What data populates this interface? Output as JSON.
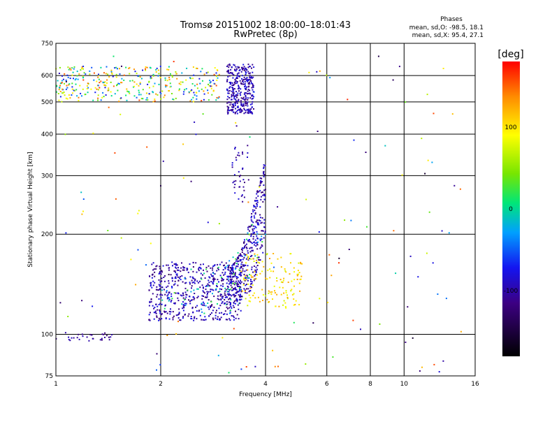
{
  "chart_data": {
    "type": "scatter",
    "title": "Tromsø 20151002 18:00:00–18:01:43",
    "subtitle": "RwPretec (8p)",
    "xlabel": "Frequency [MHz]",
    "ylabel": "Stationary phase Virtual Height [km]",
    "x_scale": "log",
    "y_scale": "log",
    "xlim": [
      1,
      16
    ],
    "ylim": [
      75,
      750
    ],
    "x_ticks": [
      1,
      2,
      4,
      6,
      8,
      10,
      16
    ],
    "y_ticks": [
      75,
      100,
      200,
      300,
      400,
      500,
      600,
      750
    ],
    "grid": true,
    "legend": {
      "title": "Phases",
      "lines": [
        "mean, sd,O: -98.5, 18.1",
        "mean, sd,X:  95.4, 27.1"
      ]
    },
    "colorbar": {
      "label": "[deg]",
      "range": [
        -180,
        180
      ],
      "ticks": [
        -100,
        0,
        100
      ]
    },
    "clusters": [
      {
        "desc": "E-layer trace",
        "x": [
          1.0,
          1.45
        ],
        "y": [
          95,
          102
        ],
        "phase": [
          -120,
          -90
        ],
        "n": 30
      },
      {
        "desc": "F-region low band",
        "x": [
          1.85,
          3.4
        ],
        "y": [
          110,
          165
        ],
        "phase": [
          -125,
          -70
        ],
        "n": 560
      },
      {
        "desc": "F-region low band mixed",
        "x": [
          2.0,
          3.4
        ],
        "y": [
          115,
          160
        ],
        "phase": [
          -40,
          30
        ],
        "n": 50
      },
      {
        "desc": "F-region cusp",
        "x": [
          3.1,
          4.0
        ],
        "y": [
          120,
          310
        ],
        "phase": [
          -125,
          -70
        ],
        "n": 380
      },
      {
        "desc": "F-region cusp mixed",
        "x": [
          3.1,
          4.0
        ],
        "y": [
          130,
          260
        ],
        "phase": [
          -40,
          40
        ],
        "n": 30
      },
      {
        "desc": "F-region vertical tail",
        "x": [
          3.2,
          3.6
        ],
        "y": [
          250,
          370
        ],
        "phase": [
          -120,
          -80
        ],
        "n": 40
      },
      {
        "desc": "X-mode trace",
        "x": [
          3.4,
          5.1
        ],
        "y": [
          120,
          175
        ],
        "phase": [
          70,
          130
        ],
        "n": 140
      },
      {
        "desc": "Spread F high band",
        "x": [
          3.1,
          3.7
        ],
        "y": [
          460,
          650
        ],
        "phase": [
          -125,
          -70
        ],
        "n": 340
      },
      {
        "desc": "Sporadic high band",
        "x": [
          1.0,
          2.95
        ],
        "y": [
          500,
          640
        ],
        "phase": [
          -80,
          160
        ],
        "n": 360
      },
      {
        "desc": "Sparse noise",
        "x": [
          1.0,
          15.0
        ],
        "y": [
          75,
          700
        ],
        "phase": [
          -160,
          170
        ],
        "n": 140
      }
    ]
  }
}
